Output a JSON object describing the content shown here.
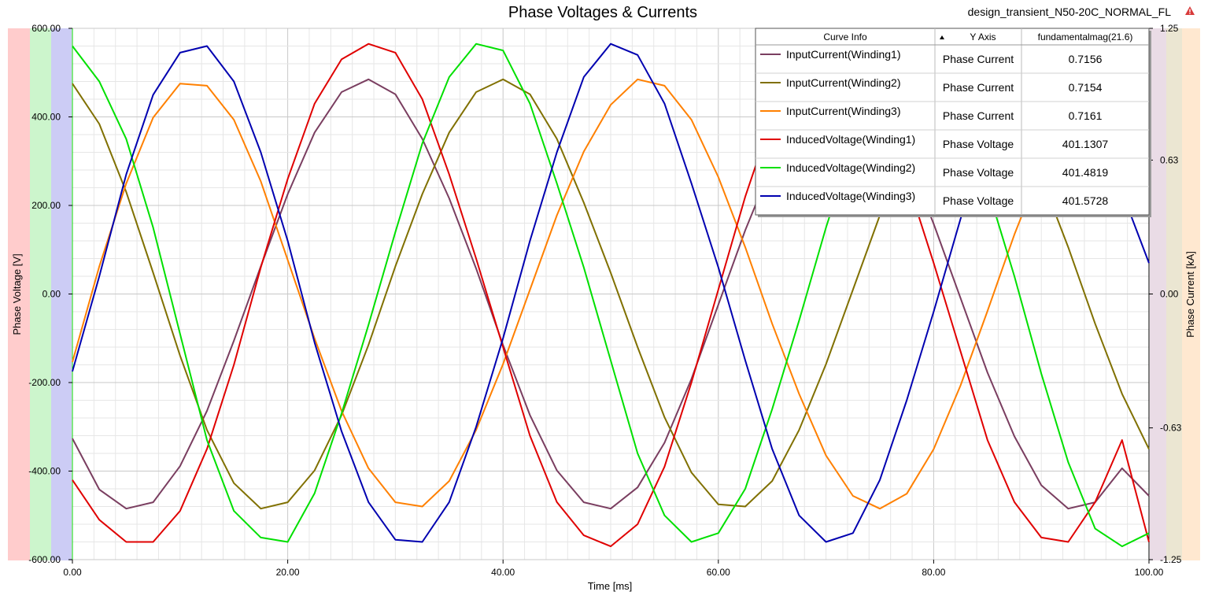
{
  "header": {
    "title": "Phase Voltages & Currents",
    "design_name": "design_transient_N50-20C_NORMAL_FL"
  },
  "legend": {
    "columns": [
      "Curve Info",
      "Y Axis",
      "fundamentalmag(21.6)"
    ],
    "rows": [
      {
        "name": "InputCurrent(Winding1)",
        "axis": "Phase Current",
        "value": "0.7156",
        "color": "#7a3e60"
      },
      {
        "name": "InputCurrent(Winding2)",
        "axis": "Phase Current",
        "value": "0.7154",
        "color": "#807000"
      },
      {
        "name": "InputCurrent(Winding3)",
        "axis": "Phase Current",
        "value": "0.7161",
        "color": "#ff8000"
      },
      {
        "name": "InducedVoltage(Winding1)",
        "axis": "Phase Voltage",
        "value": "401.1307",
        "color": "#e00000"
      },
      {
        "name": "InducedVoltage(Winding2)",
        "axis": "Phase Voltage",
        "value": "401.4819",
        "color": "#00e000"
      },
      {
        "name": "InducedVoltage(Winding3)",
        "axis": "Phase Voltage",
        "value": "401.5728",
        "color": "#0000b0"
      }
    ]
  },
  "chart_data": {
    "type": "line",
    "title": "Phase Voltages & Currents",
    "xlabel": "Time [ms]",
    "ylabel": "Phase Voltage [V]",
    "y2label": "Phase Current [kA]",
    "xlim": [
      0,
      100
    ],
    "ylim": [
      -600,
      600
    ],
    "y2lim": [
      -1.25,
      1.25
    ],
    "x_ticks": [
      "0.00",
      "20.00",
      "40.00",
      "60.00",
      "80.00",
      "100.00"
    ],
    "y_ticks": [
      "-600.00",
      "-400.00",
      "-200.00",
      "0.00",
      "200.00",
      "400.00",
      "600.00"
    ],
    "y2_ticks": [
      "-1.25",
      "-0.63",
      "0.00",
      "0.63",
      "1.25"
    ],
    "grid": true,
    "legend_position": "top-right",
    "x": [
      0,
      2.5,
      5,
      7.5,
      10,
      12.5,
      15,
      17.5,
      20,
      22.5,
      25,
      27.5,
      30,
      32.5,
      35,
      37.5,
      40,
      42.5,
      45,
      47.5,
      50,
      52.5,
      55,
      57.5,
      60,
      62.5,
      65,
      67.5,
      70,
      72.5,
      75,
      77.5,
      80,
      82.5,
      85,
      87.5,
      90,
      92.5,
      95,
      97.5,
      100
    ],
    "series": [
      {
        "name": "InputCurrent(Winding1)",
        "axis": "right",
        "color": "#7a3e60",
        "values": [
          -0.68,
          -0.92,
          -1.01,
          -0.98,
          -0.81,
          -0.55,
          -0.22,
          0.13,
          0.47,
          0.76,
          0.95,
          1.01,
          0.94,
          0.73,
          0.45,
          0.12,
          -0.24,
          -0.57,
          -0.83,
          -0.98,
          -1.01,
          -0.91,
          -0.7,
          -0.4,
          -0.05,
          0.3,
          0.61,
          0.85,
          0.98,
          1.0,
          0.88,
          0.65,
          0.33,
          -0.02,
          -0.37,
          -0.67,
          -0.9,
          -1.01,
          -0.98,
          -0.82,
          -0.95
        ]
      },
      {
        "name": "InputCurrent(Winding2)",
        "axis": "right",
        "color": "#807000",
        "values": [
          0.99,
          0.8,
          0.48,
          0.1,
          -0.29,
          -0.64,
          -0.89,
          -1.01,
          -0.98,
          -0.83,
          -0.57,
          -0.24,
          0.13,
          0.47,
          0.76,
          0.95,
          1.01,
          0.94,
          0.73,
          0.43,
          0.1,
          -0.25,
          -0.58,
          -0.84,
          -0.99,
          -1.0,
          -0.88,
          -0.64,
          -0.33,
          0.02,
          0.37,
          0.67,
          0.89,
          1.01,
          0.98,
          0.82,
          0.55,
          0.22,
          -0.14,
          -0.47,
          -0.73
        ]
      },
      {
        "name": "InputCurrent(Winding3)",
        "axis": "right",
        "color": "#ff8000",
        "values": [
          -0.32,
          0.13,
          0.52,
          0.83,
          0.99,
          0.98,
          0.82,
          0.53,
          0.16,
          -0.21,
          -0.55,
          -0.82,
          -0.98,
          -1.0,
          -0.88,
          -0.64,
          -0.33,
          0.02,
          0.37,
          0.67,
          0.89,
          1.01,
          0.98,
          0.82,
          0.55,
          0.22,
          -0.14,
          -0.47,
          -0.76,
          -0.95,
          -1.01,
          -0.94,
          -0.73,
          -0.43,
          -0.08,
          0.28,
          0.6,
          0.84,
          0.99,
          1.0,
          0.88
        ]
      },
      {
        "name": "InducedVoltage(Winding1)",
        "axis": "left",
        "color": "#e00000",
        "values": [
          -420,
          -510,
          -560,
          -560,
          -490,
          -350,
          -160,
          60,
          260,
          430,
          530,
          565,
          545,
          440,
          270,
          80,
          -120,
          -320,
          -470,
          -545,
          -570,
          -520,
          -390,
          -200,
          10,
          220,
          400,
          520,
          565,
          540,
          430,
          260,
          70,
          -130,
          -330,
          -470,
          -550,
          -560,
          -470,
          -330,
          -560
        ]
      },
      {
        "name": "InducedVoltage(Winding2)",
        "axis": "left",
        "color": "#00e000",
        "values": [
          560,
          480,
          350,
          150,
          -90,
          -330,
          -490,
          -550,
          -560,
          -450,
          -270,
          -70,
          140,
          340,
          490,
          565,
          550,
          430,
          250,
          60,
          -150,
          -360,
          -500,
          -560,
          -540,
          -440,
          -260,
          -60,
          150,
          340,
          480,
          560,
          550,
          420,
          240,
          40,
          -180,
          -380,
          -530,
          -570,
          -540
        ]
      },
      {
        "name": "InducedVoltage(Winding3)",
        "axis": "left",
        "color": "#0000b0",
        "values": [
          -175,
          40,
          270,
          450,
          545,
          560,
          480,
          320,
          120,
          -110,
          -310,
          -470,
          -555,
          -560,
          -470,
          -300,
          -100,
          120,
          320,
          490,
          565,
          540,
          430,
          250,
          60,
          -150,
          -350,
          -500,
          -560,
          -540,
          -420,
          -240,
          -40,
          170,
          360,
          500,
          560,
          540,
          400,
          230,
          70
        ]
      }
    ]
  }
}
